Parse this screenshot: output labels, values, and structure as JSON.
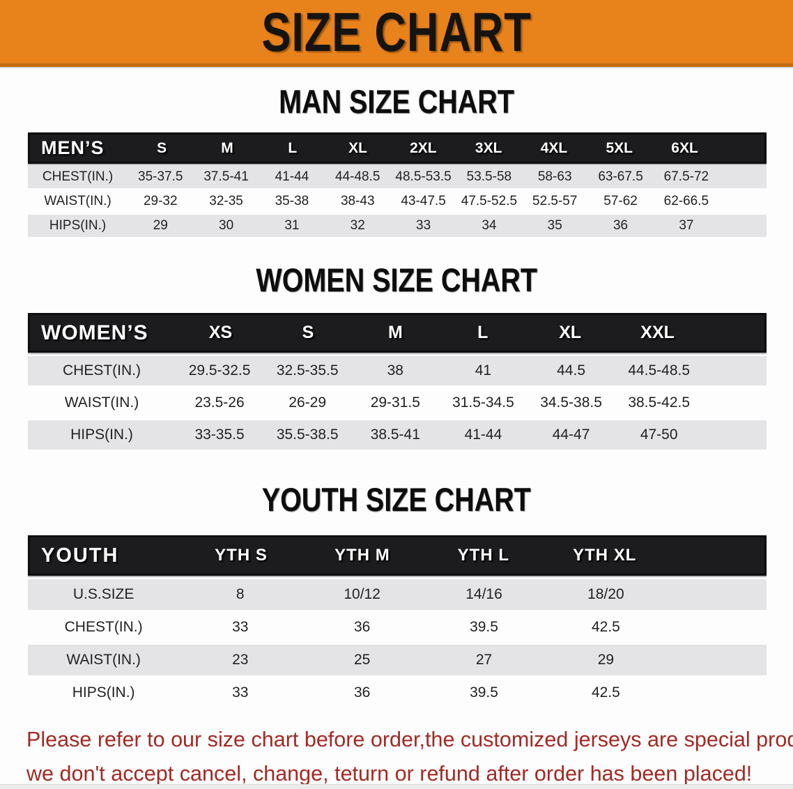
{
  "banner": {
    "title": "SIZE CHART"
  },
  "men": {
    "heading": "MAN SIZE CHART",
    "label": "MEN’S",
    "sizes": [
      "S",
      "M",
      "L",
      "XL",
      "2XL",
      "3XL",
      "4XL",
      "5XL",
      "6XL"
    ],
    "rows": [
      {
        "label": "CHEST(IN.)",
        "values": [
          "35-37.5",
          "37.5-41",
          "41-44",
          "44-48.5",
          "48.5-53.5",
          "53.5-58",
          "58-63",
          "63-67.5",
          "67.5-72"
        ]
      },
      {
        "label": "WAIST(IN.)",
        "values": [
          "29-32",
          "32-35",
          "35-38",
          "38-43",
          "43-47.5",
          "47.5-52.5",
          "52.5-57",
          "57-62",
          "62-66.5"
        ]
      },
      {
        "label": "HIPS(IN.)",
        "values": [
          "29",
          "30",
          "31",
          "32",
          "33",
          "34",
          "35",
          "36",
          "37"
        ]
      }
    ]
  },
  "women": {
    "heading": "WOMEN SIZE CHART",
    "label": "WOMEN’S",
    "sizes": [
      "XS",
      "S",
      "M",
      "L",
      "XL",
      "XXL"
    ],
    "rows": [
      {
        "label": "CHEST(IN.)",
        "values": [
          "29.5-32.5",
          "32.5-35.5",
          "38",
          "41",
          "44.5",
          "44.5-48.5"
        ]
      },
      {
        "label": "WAIST(IN.)",
        "values": [
          "23.5-26",
          "26-29",
          "29-31.5",
          "31.5-34.5",
          "34.5-38.5",
          "38.5-42.5"
        ]
      },
      {
        "label": "HIPS(IN.)",
        "values": [
          "33-35.5",
          "35.5-38.5",
          "38.5-41",
          "41-44",
          "44-47",
          "47-50"
        ]
      }
    ]
  },
  "youth": {
    "heading": "YOUTH SIZE CHART",
    "label": "YOUTH",
    "sizes": [
      "YTH S",
      "YTH M",
      "YTH L",
      "YTH XL"
    ],
    "rows": [
      {
        "label": "U.S.SIZE",
        "values": [
          "8",
          "10/12",
          "14/16",
          "18/20"
        ]
      },
      {
        "label": "CHEST(IN.)",
        "values": [
          "33",
          "36",
          "39.5",
          "42.5"
        ]
      },
      {
        "label": "WAIST(IN.)",
        "values": [
          "23",
          "25",
          "27",
          "29"
        ]
      },
      {
        "label": "HIPS(IN.)",
        "values": [
          "33",
          "36",
          "39.5",
          "42.5"
        ]
      }
    ]
  },
  "disclaimer": {
    "line1": "Please refer to our size chart before order,the customized jerseys are special products,",
    "line2": "we don't accept cancel, change, teturn or refund after order has been placed!"
  },
  "colors": {
    "banner_orange": "#E8821B",
    "header_black": "#1C1B1D",
    "row_gray": "#E4E4E7",
    "disclaimer_red": "#A32A24"
  }
}
